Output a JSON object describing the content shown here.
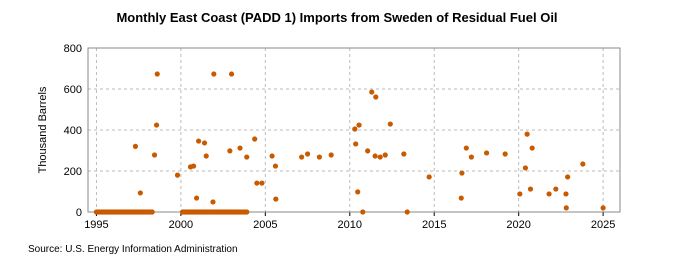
{
  "chart_data": {
    "type": "scatter",
    "title": "Monthly East Coast (PADD 1) Imports from Sweden of Residual Fuel Oil",
    "y_label": "Thousand Barrels",
    "source": "Source: U.S. Energy Information Administration",
    "color": "#c85a00",
    "grid": true,
    "xlim": [
      1994.5,
      2026
    ],
    "ylim": [
      0,
      800
    ],
    "xticks": [
      1995,
      2000,
      2005,
      2010,
      2015,
      2020,
      2025
    ],
    "yticks": [
      0,
      200,
      400,
      600,
      800
    ],
    "x": [
      1995,
      1995.1,
      1995.2,
      1995.3,
      1995.4,
      1995.5,
      1995.6,
      1995.7,
      1995.8,
      1995.9,
      1996,
      1996.1,
      1996.2,
      1996.3,
      1996.4,
      1996.5,
      1996.6,
      1996.7,
      1996.8,
      1996.9,
      1997,
      1997.1,
      1997.2,
      1997.3,
      1997.4,
      1997.5,
      1997.6,
      1997.7,
      1997.8,
      1997.9,
      1998,
      1998.1,
      1998.2,
      1998.3,
      2000.1,
      2000.2,
      2000.3,
      2000.4,
      2000.5,
      2000.6,
      2000.7,
      2000.8,
      2000.9,
      2001,
      2001.1,
      2001.2,
      2001.3,
      2001.4,
      2001.5,
      2001.6,
      2001.7,
      2001.8,
      2001.9,
      2002,
      2002.1,
      2002.2,
      2002.3,
      2002.4,
      2002.5,
      2002.6,
      2002.7,
      2002.8,
      2002.9,
      2003,
      2003.1,
      2003.2,
      2003.3,
      2003.4,
      2003.5,
      2003.6,
      2003.7,
      2003.8,
      2003.9,
      1997.31,
      1997.6,
      1998.44,
      1998.56,
      1998.6,
      1999.8,
      2000.57,
      2000.75,
      2000.93,
      2001.05,
      2001.4,
      2001.5,
      2001.9,
      2001.95,
      2002.9,
      2003.0,
      2003.5,
      2003.9,
      2004.37,
      2004.5,
      2004.8,
      2005.4,
      2005.6,
      2005.62,
      2007.15,
      2007.5,
      2008.2,
      2008.9,
      2010.3,
      2010.55,
      2010.35,
      2010.47,
      2010.77,
      2011.06,
      2011.3,
      2011.54,
      2011.5,
      2011.8,
      2012.1,
      2012.4,
      2013.2,
      2013.4,
      2014.7,
      2016.6,
      2016.64,
      2016.9,
      2017.2,
      2018.1,
      2019.2,
      2020.07,
      2020.4,
      2020.5,
      2020.7,
      2020.8,
      2021.8,
      2022.2,
      2022.8,
      2022.82,
      2022.9,
      2023.8,
      2025.0
    ],
    "values": [
      0,
      0,
      0,
      0,
      0,
      0,
      0,
      0,
      0,
      0,
      0,
      0,
      0,
      0,
      0,
      0,
      0,
      0,
      0,
      0,
      0,
      0,
      0,
      0,
      0,
      0,
      0,
      0,
      0,
      0,
      0,
      0,
      0,
      0,
      0,
      0,
      0,
      0,
      0,
      0,
      0,
      0,
      0,
      0,
      0,
      0,
      0,
      0,
      0,
      0,
      0,
      0,
      0,
      0,
      0,
      0,
      0,
      0,
      0,
      0,
      0,
      0,
      0,
      0,
      0,
      0,
      0,
      0,
      0,
      0,
      0,
      0,
      0,
      320,
      93,
      278,
      424,
      673,
      180,
      220,
      224,
      68,
      346,
      337,
      273,
      49,
      673,
      298,
      673,
      312,
      268,
      356,
      141,
      141,
      273,
      224,
      63,
      268,
      283,
      268,
      278,
      405,
      424,
      332,
      98,
      0,
      298,
      585,
      561,
      273,
      268,
      278,
      429,
      283,
      0,
      171,
      68,
      190,
      312,
      268,
      288,
      283,
      88,
      215,
      380,
      112,
      312,
      88,
      112,
      88,
      20,
      171,
      234,
      20
    ]
  }
}
